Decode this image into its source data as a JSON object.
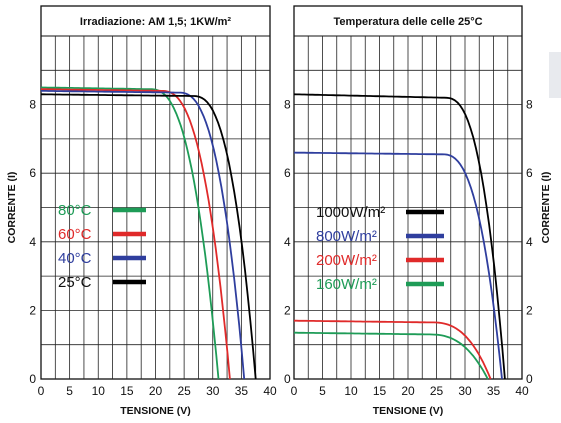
{
  "chart_data": [
    {
      "type": "line",
      "title": "Irradiazione: AM 1,5; 1KW/m²",
      "xlabel": "TENSIONE (V)",
      "ylabel": "CORRENTE (I)",
      "xlim": [
        0,
        40
      ],
      "ylim": [
        0,
        10
      ],
      "xticks": [
        "0",
        "5",
        "10",
        "15",
        "20",
        "25",
        "30",
        "35",
        "40"
      ],
      "yticks": [
        "0",
        "2",
        "4",
        "6",
        "8"
      ],
      "ylabel_side": "left",
      "grid": true,
      "legend_position": "lower-left",
      "series": [
        {
          "name": "80°C",
          "color": "#1e9c57",
          "isc": 8.5,
          "voc": 31,
          "knee": 19,
          "ipeak": 8.45
        },
        {
          "name": "60°C",
          "color": "#e02a2a",
          "isc": 8.45,
          "voc": 33,
          "knee": 21,
          "ipeak": 8.4
        },
        {
          "name": "40°C",
          "color": "#2f3e9e",
          "isc": 8.4,
          "voc": 35.5,
          "knee": 24,
          "ipeak": 8.35
        },
        {
          "name": "25°C",
          "color": "#000000",
          "isc": 8.3,
          "voc": 37.5,
          "knee": 26.5,
          "ipeak": 8.25
        }
      ]
    },
    {
      "type": "line",
      "title": "Temperatura delle celle 25°C",
      "xlabel": "TENSIONE (V)",
      "ylabel": "CORRENTE (I)",
      "xlim": [
        0,
        40
      ],
      "ylim": [
        0,
        10
      ],
      "xticks": [
        "0",
        "5",
        "10",
        "15",
        "20",
        "25",
        "30",
        "35",
        "40"
      ],
      "yticks": [
        "0",
        "2",
        "4",
        "6",
        "8"
      ],
      "ylabel_side": "right",
      "grid": true,
      "legend_position": "middle-left",
      "series": [
        {
          "name": "1000W/m²",
          "color": "#000000",
          "isc": 8.3,
          "voc": 37,
          "knee": 26.5,
          "ipeak": 8.2
        },
        {
          "name": "800W/m²",
          "color": "#2f3e9e",
          "isc": 6.6,
          "voc": 36.5,
          "knee": 26,
          "ipeak": 6.55
        },
        {
          "name": "200W/m²",
          "color": "#e02a2a",
          "isc": 1.7,
          "voc": 34.5,
          "knee": 24,
          "ipeak": 1.65
        },
        {
          "name": "160W/m²",
          "color": "#1e9c57",
          "isc": 1.35,
          "voc": 34,
          "knee": 23.5,
          "ipeak": 1.3
        }
      ]
    }
  ]
}
